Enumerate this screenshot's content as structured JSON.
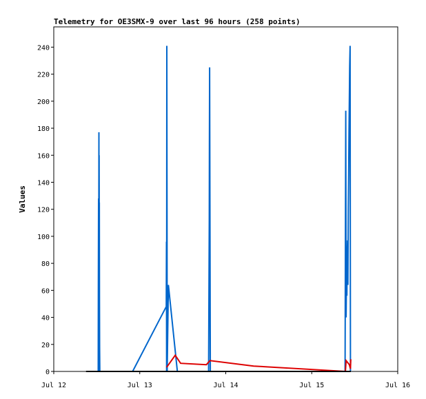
{
  "chart_data": {
    "type": "line",
    "title": "Telemetry for OE3SMX-9 over last 96 hours (258 points)",
    "xlabel": "",
    "ylabel": "Values",
    "ylim": [
      0,
      255
    ],
    "xlim_hours": [
      0,
      96
    ],
    "x_ticks": [
      {
        "label": "Jul 12",
        "hour": 0
      },
      {
        "label": "Jul 13",
        "hour": 24
      },
      {
        "label": "Jul 14",
        "hour": 48
      },
      {
        "label": "Jul 15",
        "hour": 72
      },
      {
        "label": "Jul 16",
        "hour": 96
      }
    ],
    "y_ticks": [
      0,
      20,
      40,
      60,
      80,
      100,
      120,
      140,
      160,
      180,
      200,
      220,
      240
    ],
    "grid": false,
    "series": [
      {
        "color": "#0066cc",
        "points": [
          [
            12.4,
            0
          ],
          [
            12.45,
            64
          ],
          [
            12.5,
            128
          ],
          [
            12.55,
            0
          ],
          [
            12.6,
            177
          ],
          [
            12.63,
            88
          ],
          [
            12.66,
            160
          ],
          [
            12.69,
            90
          ],
          [
            12.72,
            125
          ],
          [
            12.75,
            53
          ],
          [
            12.8,
            18
          ],
          [
            12.85,
            0
          ],
          [
            22.0,
            0
          ],
          [
            31.4,
            48
          ],
          [
            31.45,
            96
          ],
          [
            31.5,
            0
          ],
          [
            31.55,
            241
          ],
          [
            31.6,
            120
          ],
          [
            31.65,
            0
          ],
          [
            32.0,
            64
          ],
          [
            34.5,
            0
          ],
          [
            43.2,
            0
          ],
          [
            43.3,
            56
          ],
          [
            43.4,
            112
          ],
          [
            43.45,
            168
          ],
          [
            43.5,
            225
          ],
          [
            43.6,
            112
          ],
          [
            43.7,
            0
          ],
          [
            81.3,
            0
          ],
          [
            81.4,
            97
          ],
          [
            81.5,
            193
          ],
          [
            81.6,
            40
          ],
          [
            81.7,
            73
          ],
          [
            81.8,
            56
          ],
          [
            81.9,
            88
          ],
          [
            82.0,
            97
          ],
          [
            82.1,
            64
          ],
          [
            82.2,
            121
          ],
          [
            82.3,
            145
          ],
          [
            82.4,
            177
          ],
          [
            82.5,
            201
          ],
          [
            82.6,
            226
          ],
          [
            82.7,
            241
          ],
          [
            82.8,
            0
          ]
        ]
      },
      {
        "color": "#dd0000",
        "points": [
          [
            31.5,
            3
          ],
          [
            33.9,
            12
          ],
          [
            35.4,
            6
          ],
          [
            42.6,
            5
          ],
          [
            43.6,
            8
          ],
          [
            55.8,
            4
          ],
          [
            81.4,
            0
          ],
          [
            81.6,
            8
          ],
          [
            82.5,
            5
          ],
          [
            82.8,
            2
          ],
          [
            82.9,
            9
          ]
        ]
      },
      {
        "color": "#000000",
        "points": [
          [
            9.0,
            0
          ],
          [
            82.9,
            0
          ]
        ]
      }
    ]
  }
}
